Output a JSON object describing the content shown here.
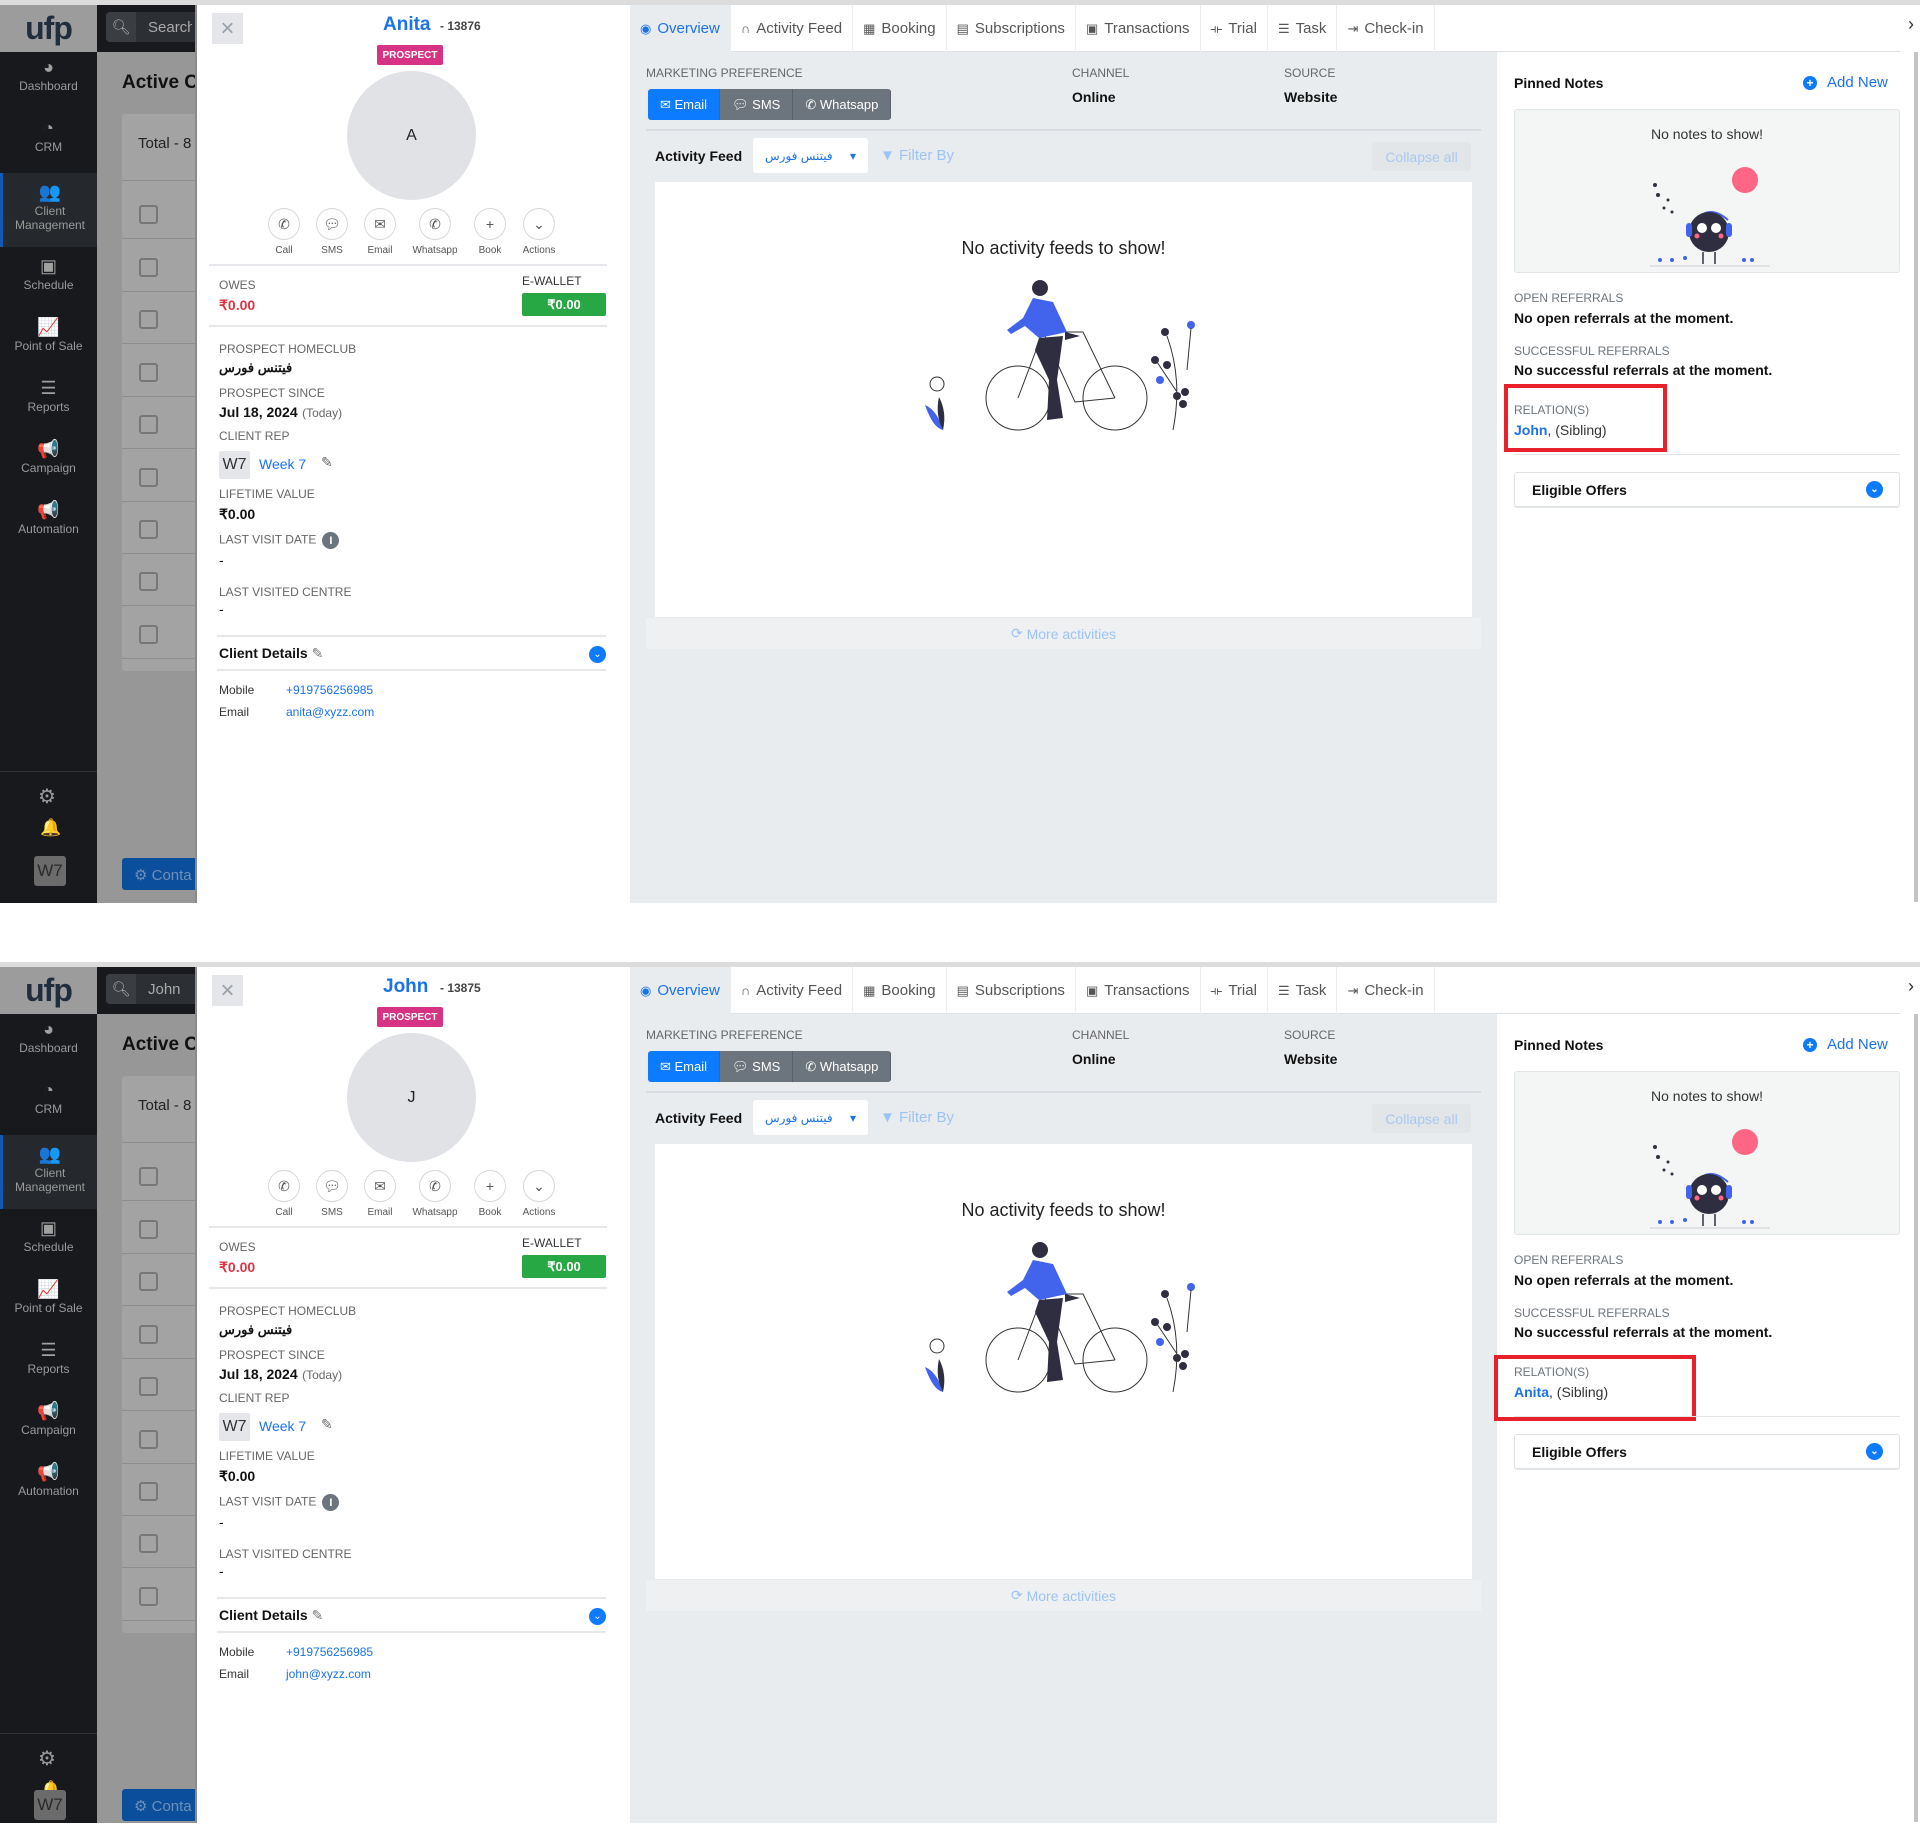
{
  "app": {
    "logo": "ufp",
    "nav": [
      {
        "label": "Dashboard",
        "icon": "dashboard-icon"
      },
      {
        "label": "CRM",
        "icon": "pie-chart-icon"
      },
      {
        "label": "Client Management",
        "icon": "users-icon"
      },
      {
        "label": "Schedule",
        "icon": "calendar-plus-icon"
      },
      {
        "label": "Point of Sale",
        "icon": "line-chart-icon"
      },
      {
        "label": "Reports",
        "icon": "bar-list-icon"
      },
      {
        "label": "Campaign",
        "icon": "megaphone-icon"
      },
      {
        "label": "Automation",
        "icon": "megaphone-icon"
      }
    ],
    "user_initials": "W7",
    "search_placeholder": "Search",
    "page_title": "Active Cl",
    "total_label": "Total - 8 .",
    "contact_button": "Conta",
    "accent": "#1a73e8"
  },
  "drawer": {
    "badge": "PROSPECT",
    "actions": [
      {
        "label": "Call",
        "icon": "phone-icon"
      },
      {
        "label": "SMS",
        "icon": "chat-icon"
      },
      {
        "label": "Email",
        "icon": "envelope-icon"
      },
      {
        "label": "Whatsapp",
        "icon": "whatsapp-icon"
      },
      {
        "label": "Book",
        "icon": "plus-icon"
      },
      {
        "label": "Actions",
        "icon": "chevron-down-icon"
      }
    ],
    "owes_label": "OWES",
    "owes_value": "₹0.00",
    "ewallet_label": "E-WALLET",
    "ewallet_value": "₹0.00",
    "homeclub_label": "PROSPECT HOMECLUB",
    "homeclub_value": "فيتنس فورس",
    "since_label": "PROSPECT SINCE",
    "since_value": "Jul 18, 2024",
    "since_note": "(Today)",
    "rep_label": "CLIENT REP",
    "rep_initials": "W7",
    "rep_name": "Week 7",
    "ltv_label": "LIFETIME VALUE",
    "ltv_value": "₹0.00",
    "last_visit_label": "LAST VISIT DATE",
    "last_visit_value": "-",
    "last_centre_label": "LAST VISITED CENTRE",
    "last_centre_value": "-",
    "details_title": "Client Details",
    "mobile_label": "Mobile",
    "mobile_value": "+919756256985",
    "email_label": "Email"
  },
  "tabs": [
    {
      "label": "Overview",
      "icon": "globe-icon",
      "active": true
    },
    {
      "label": "Activity Feed",
      "icon": "headphones-icon"
    },
    {
      "label": "Booking",
      "icon": "calendar-icon"
    },
    {
      "label": "Subscriptions",
      "icon": "id-card-icon"
    },
    {
      "label": "Transactions",
      "icon": "money-icon"
    },
    {
      "label": "Trial",
      "icon": "dumbbell-icon"
    },
    {
      "label": "Task",
      "icon": "list-icon"
    },
    {
      "label": "Check-in",
      "icon": "sign-in-icon"
    }
  ],
  "overview": {
    "marketing_label": "MARKETING PREFERENCE",
    "marketing_options": [
      {
        "label": "Email",
        "icon": "envelope-icon",
        "selected": true
      },
      {
        "label": "SMS",
        "icon": "chat-icon",
        "selected": false
      },
      {
        "label": "Whatsapp",
        "icon": "whatsapp-icon",
        "selected": false
      }
    ],
    "channel_label": "CHANNEL",
    "channel_value": "Online",
    "source_label": "SOURCE",
    "source_value": "Website",
    "feed_title": "Activity Feed",
    "feed_club": "فيتنس فورس",
    "filter_label": "Filter By",
    "collapse_label": "Collapse all",
    "empty_text": "No activity feeds to show!",
    "more_label": "More activities"
  },
  "side": {
    "pinned_title": "Pinned Notes",
    "add_new": "Add New",
    "no_notes": "No notes to show!",
    "open_ref_label": "OPEN REFERRALS",
    "open_ref_value": "No open referrals at the moment.",
    "succ_ref_label": "SUCCESSFUL REFERRALS",
    "succ_ref_value": "No successful referrals at the moment.",
    "relations_label": "RELATION(S)",
    "offers_title": "Eligible Offers",
    "highlight_color": "#e8202a"
  },
  "screens": [
    {
      "search_value": "",
      "client": {
        "name": "Anita",
        "id": "- 13876",
        "initial": "A",
        "email": "anita@xyzz.com"
      },
      "relation": {
        "name": "John",
        "type": ", (Sibling)"
      }
    },
    {
      "search_value": "John",
      "client": {
        "name": "John",
        "id": "- 13875",
        "initial": "J",
        "email": "john@xyzz.com"
      },
      "relation": {
        "name": "Anita",
        "type": ", (Sibling)"
      }
    }
  ]
}
